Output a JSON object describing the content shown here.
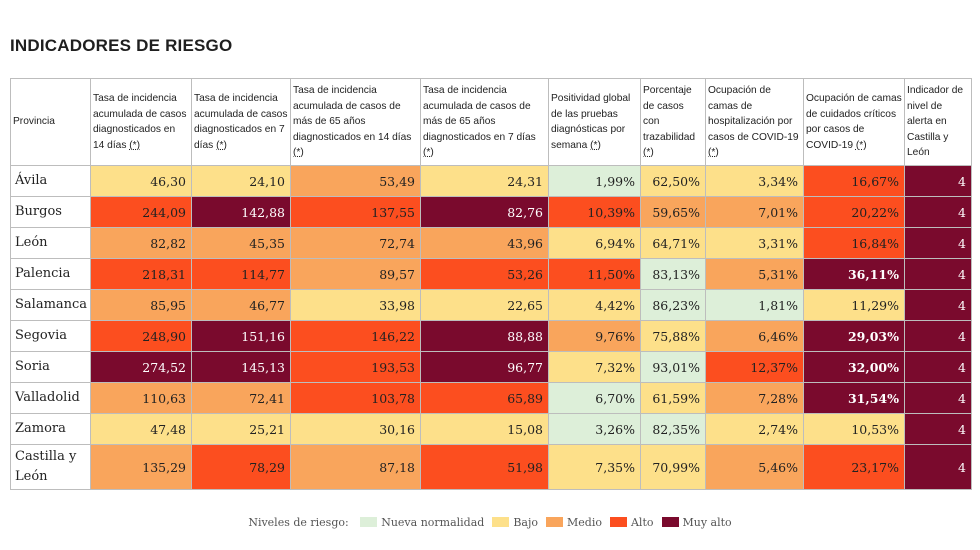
{
  "title": "INDICADORES DE RIESGO",
  "colors": {
    "nueva": "#ddefd9",
    "bajo": "#fde08a",
    "medio": "#f9a55c",
    "alto": "#fc4e1f",
    "muy_alto": "#7a0a2d"
  },
  "headers": [
    {
      "text": "Provincia",
      "ast": ""
    },
    {
      "text": "Tasa de incidencia acumulada de casos diagnosticados en 14 días",
      "ast": "(*)"
    },
    {
      "text": "Tasa de incidencia acumulada de casos diagnosticados en 7 días",
      "ast": "(*)"
    },
    {
      "text": "Tasa de incidencia acumulada de casos de más de 65 años diagnosticados en 14 días",
      "ast": "(*)"
    },
    {
      "text": "Tasa de incidencia acumulada de casos de más de 65 años diagnosticados en 7 días",
      "ast": "(*)"
    },
    {
      "text": "Positividad global de las pruebas diagnósticas por semana",
      "ast": "(*)"
    },
    {
      "text": "Porcentaje de casos con trazabilidad",
      "ast": "(*)"
    },
    {
      "text": "Ocupación de camas de hospitalización por casos de COVID-19",
      "ast": "(*)"
    },
    {
      "text": "Ocupación de camas de cuidados críticos por casos de COVID-19",
      "ast": "(*)"
    },
    {
      "text": "Indicador de nivel de alerta en Castilla y León",
      "ast": ""
    }
  ],
  "rows": [
    {
      "provincia": "Ávila",
      "cells": [
        {
          "v": "46,30",
          "level": "bajo"
        },
        {
          "v": "24,10",
          "level": "bajo"
        },
        {
          "v": "53,49",
          "level": "medio"
        },
        {
          "v": "24,31",
          "level": "bajo"
        },
        {
          "v": "1,99%",
          "level": "nueva"
        },
        {
          "v": "62,50%",
          "level": "bajo"
        },
        {
          "v": "3,34%",
          "level": "bajo"
        },
        {
          "v": "16,67%",
          "level": "alto"
        },
        {
          "v": "4",
          "level": "muy_alto"
        }
      ]
    },
    {
      "provincia": "Burgos",
      "cells": [
        {
          "v": "244,09",
          "level": "alto"
        },
        {
          "v": "142,88",
          "level": "muy_alto"
        },
        {
          "v": "137,55",
          "level": "alto"
        },
        {
          "v": "82,76",
          "level": "muy_alto"
        },
        {
          "v": "10,39%",
          "level": "alto"
        },
        {
          "v": "59,65%",
          "level": "medio"
        },
        {
          "v": "7,01%",
          "level": "medio"
        },
        {
          "v": "20,22%",
          "level": "alto"
        },
        {
          "v": "4",
          "level": "muy_alto"
        }
      ]
    },
    {
      "provincia": "León",
      "cells": [
        {
          "v": "82,82",
          "level": "medio"
        },
        {
          "v": "45,35",
          "level": "medio"
        },
        {
          "v": "72,74",
          "level": "medio"
        },
        {
          "v": "43,96",
          "level": "medio"
        },
        {
          "v": "6,94%",
          "level": "bajo"
        },
        {
          "v": "64,71%",
          "level": "bajo"
        },
        {
          "v": "3,31%",
          "level": "bajo"
        },
        {
          "v": "16,84%",
          "level": "alto"
        },
        {
          "v": "4",
          "level": "muy_alto"
        }
      ]
    },
    {
      "provincia": "Palencia",
      "cells": [
        {
          "v": "218,31",
          "level": "alto"
        },
        {
          "v": "114,77",
          "level": "alto"
        },
        {
          "v": "89,57",
          "level": "medio"
        },
        {
          "v": "53,26",
          "level": "alto"
        },
        {
          "v": "11,50%",
          "level": "alto"
        },
        {
          "v": "83,13%",
          "level": "nueva"
        },
        {
          "v": "5,31%",
          "level": "medio"
        },
        {
          "v": "36,11%",
          "level": "muy_alto",
          "bold": true
        },
        {
          "v": "4",
          "level": "muy_alto"
        }
      ]
    },
    {
      "provincia": "Salamanca",
      "cells": [
        {
          "v": "85,95",
          "level": "medio"
        },
        {
          "v": "46,77",
          "level": "medio"
        },
        {
          "v": "33,98",
          "level": "bajo"
        },
        {
          "v": "22,65",
          "level": "bajo"
        },
        {
          "v": "4,42%",
          "level": "bajo"
        },
        {
          "v": "86,23%",
          "level": "nueva"
        },
        {
          "v": "1,81%",
          "level": "nueva"
        },
        {
          "v": "11,29%",
          "level": "bajo"
        },
        {
          "v": "4",
          "level": "muy_alto"
        }
      ]
    },
    {
      "provincia": "Segovia",
      "cells": [
        {
          "v": "248,90",
          "level": "alto"
        },
        {
          "v": "151,16",
          "level": "muy_alto"
        },
        {
          "v": "146,22",
          "level": "alto"
        },
        {
          "v": "88,88",
          "level": "muy_alto"
        },
        {
          "v": "9,76%",
          "level": "medio"
        },
        {
          "v": "75,88%",
          "level": "bajo"
        },
        {
          "v": "6,46%",
          "level": "medio"
        },
        {
          "v": "29,03%",
          "level": "muy_alto",
          "bold": true
        },
        {
          "v": "4",
          "level": "muy_alto"
        }
      ]
    },
    {
      "provincia": "Soria",
      "cells": [
        {
          "v": "274,52",
          "level": "muy_alto"
        },
        {
          "v": "145,13",
          "level": "muy_alto"
        },
        {
          "v": "193,53",
          "level": "alto"
        },
        {
          "v": "96,77",
          "level": "muy_alto"
        },
        {
          "v": "7,32%",
          "level": "bajo"
        },
        {
          "v": "93,01%",
          "level": "nueva"
        },
        {
          "v": "12,37%",
          "level": "alto"
        },
        {
          "v": "32,00%",
          "level": "muy_alto",
          "bold": true
        },
        {
          "v": "4",
          "level": "muy_alto"
        }
      ]
    },
    {
      "provincia": "Valladolid",
      "cells": [
        {
          "v": "110,63",
          "level": "medio"
        },
        {
          "v": "72,41",
          "level": "medio"
        },
        {
          "v": "103,78",
          "level": "alto"
        },
        {
          "v": "65,89",
          "level": "alto"
        },
        {
          "v": "6,70%",
          "level": "nueva"
        },
        {
          "v": "61,59%",
          "level": "bajo"
        },
        {
          "v": "7,28%",
          "level": "medio"
        },
        {
          "v": "31,54%",
          "level": "muy_alto",
          "bold": true
        },
        {
          "v": "4",
          "level": "muy_alto"
        }
      ]
    },
    {
      "provincia": "Zamora",
      "cells": [
        {
          "v": "47,48",
          "level": "bajo"
        },
        {
          "v": "25,21",
          "level": "bajo"
        },
        {
          "v": "30,16",
          "level": "bajo"
        },
        {
          "v": "15,08",
          "level": "bajo"
        },
        {
          "v": "3,26%",
          "level": "nueva"
        },
        {
          "v": "82,35%",
          "level": "nueva"
        },
        {
          "v": "2,74%",
          "level": "bajo"
        },
        {
          "v": "10,53%",
          "level": "bajo"
        },
        {
          "v": "4",
          "level": "muy_alto"
        }
      ]
    },
    {
      "provincia": "Castilla y León",
      "tall": true,
      "cells": [
        {
          "v": "135,29",
          "level": "medio"
        },
        {
          "v": "78,29",
          "level": "alto"
        },
        {
          "v": "87,18",
          "level": "medio"
        },
        {
          "v": "51,98",
          "level": "alto"
        },
        {
          "v": "7,35%",
          "level": "bajo"
        },
        {
          "v": "70,99%",
          "level": "bajo"
        },
        {
          "v": "5,46%",
          "level": "medio"
        },
        {
          "v": "23,17%",
          "level": "alto"
        },
        {
          "v": "4",
          "level": "muy_alto"
        }
      ]
    }
  ],
  "legend": {
    "label": "Niveles de riesgo:",
    "items": [
      {
        "label": "Nueva normalidad",
        "level": "nueva"
      },
      {
        "label": "Bajo",
        "level": "bajo"
      },
      {
        "label": "Medio",
        "level": "medio"
      },
      {
        "label": "Alto",
        "level": "alto"
      },
      {
        "label": "Muy alto",
        "level": "muy_alto"
      }
    ]
  }
}
